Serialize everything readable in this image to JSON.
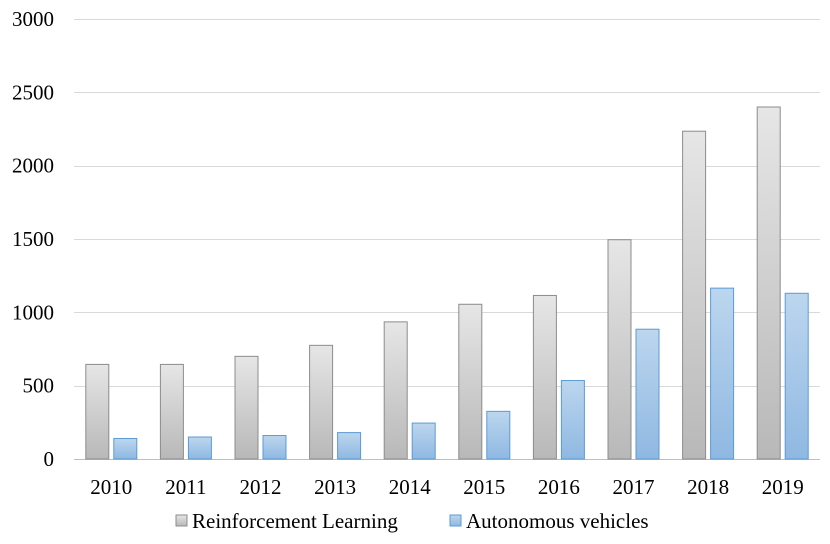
{
  "chart_data": {
    "type": "bar",
    "title": "",
    "xlabel": "",
    "ylabel": "",
    "categories": [
      "2010",
      "2011",
      "2012",
      "2013",
      "2014",
      "2015",
      "2016",
      "2017",
      "2018",
      "2019"
    ],
    "series": [
      {
        "name": "Reinforcement Learning",
        "color": "#c8c8c8",
        "values": [
          645,
          645,
          700,
          775,
          935,
          1055,
          1115,
          1495,
          2235,
          2400
        ]
      },
      {
        "name": "Autonomous vehicles",
        "color": "#9dc3e6",
        "values": [
          140,
          150,
          160,
          180,
          245,
          325,
          535,
          885,
          1165,
          1130
        ]
      }
    ],
    "ylim": [
      0,
      3000
    ],
    "yticks": [
      0,
      500,
      1000,
      1500,
      2000,
      2500,
      3000
    ],
    "grid": true,
    "legend_position": "bottom"
  }
}
